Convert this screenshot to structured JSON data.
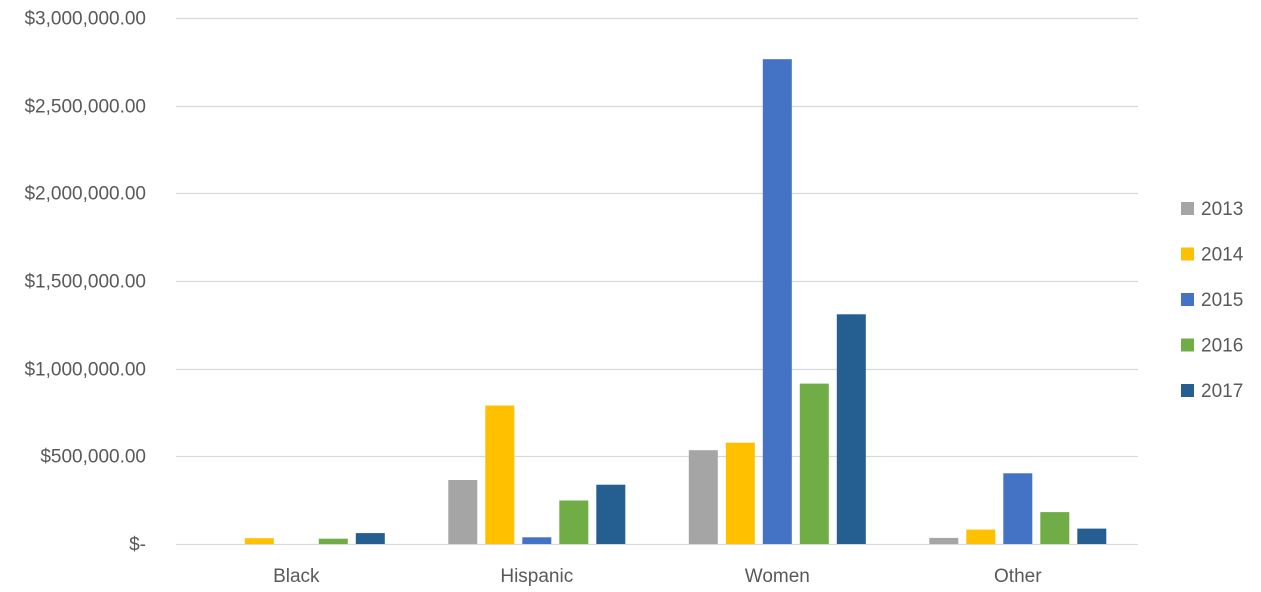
{
  "chart_data": {
    "type": "bar",
    "categories": [
      "Black",
      "Hispanic",
      "Women",
      "Other"
    ],
    "series": [
      {
        "name": "2013",
        "color": "#A5A5A5",
        "values": [
          0,
          365000,
          535000,
          35000
        ]
      },
      {
        "name": "2014",
        "color": "#FFC000",
        "values": [
          33000,
          790000,
          578000,
          82000
        ]
      },
      {
        "name": "2015",
        "color": "#4472C4",
        "values": [
          0,
          38000,
          2765000,
          403000
        ]
      },
      {
        "name": "2016",
        "color": "#70AD47",
        "values": [
          30000,
          248000,
          915000,
          182000
        ]
      },
      {
        "name": "2017",
        "color": "#255E91",
        "values": [
          62000,
          338000,
          1310000,
          88000
        ]
      }
    ],
    "ylim": [
      0,
      3000000
    ],
    "y_ticks": [
      0,
      500000,
      1000000,
      1500000,
      2000000,
      2500000,
      3000000
    ],
    "y_tick_labels": [
      "$-",
      "$500,000.00",
      "$1,000,000.00",
      "$1,500,000.00",
      "$2,000,000.00",
      "$2,500,000.00",
      "$3,000,000.00"
    ],
    "grid": true,
    "legend_position": "right"
  },
  "colors": {
    "gridline": "#D9D9D9",
    "text": "#595959"
  }
}
